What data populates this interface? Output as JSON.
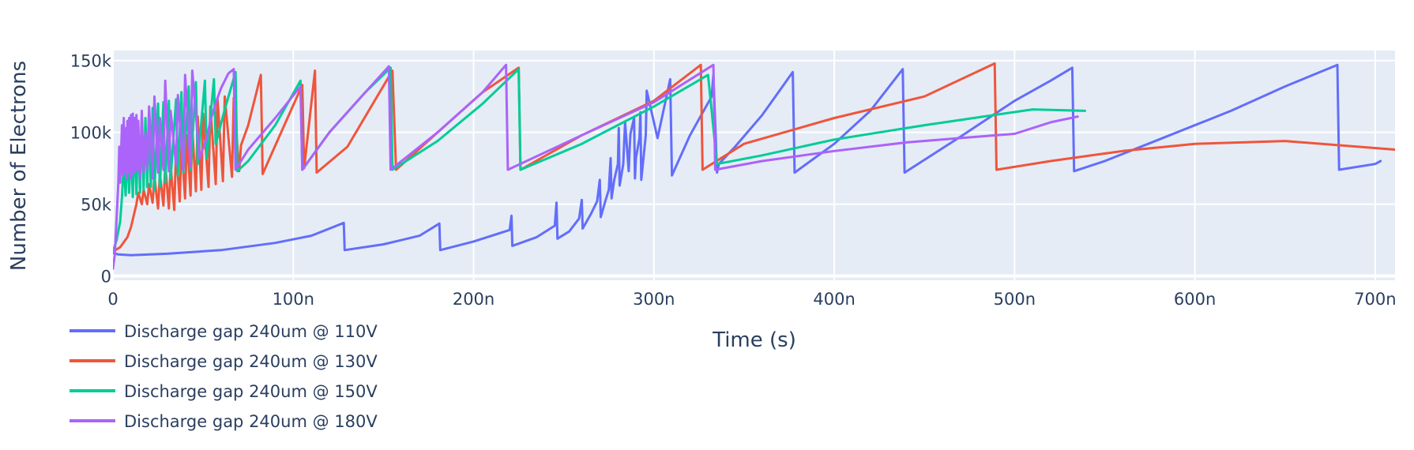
{
  "chart_data": {
    "type": "line",
    "title": "",
    "xlabel": "Time (s)",
    "ylabel": "Number of Electrons",
    "xlim": [
      0,
      711
    ],
    "ylim": [
      -3000,
      157000
    ],
    "x_unit_note": "x values in nanoseconds (axis ticks printed as n)",
    "x_ticks": [
      0,
      100,
      200,
      300,
      400,
      500,
      600,
      700
    ],
    "x_tick_labels": [
      "0",
      "100n",
      "200n",
      "300n",
      "400n",
      "500n",
      "600n",
      "700n"
    ],
    "y_ticks": [
      0,
      50000,
      100000,
      150000
    ],
    "y_tick_labels": [
      "0",
      "50k",
      "100k",
      "150k"
    ],
    "grid": true,
    "legend_position": "bottom-left",
    "plot_background": "#e5ecf6",
    "series": [
      {
        "name": "Discharge gap 240um @ 110V",
        "color": "#636efa",
        "x": [
          0,
          3,
          10,
          30,
          60,
          90,
          110,
          128,
          128.5,
          150,
          170,
          181,
          181.5,
          200,
          220,
          221,
          221.5,
          235,
          245,
          246,
          246.5,
          253,
          258.5,
          260,
          260.5,
          265,
          268.5,
          270,
          270.5,
          273,
          275,
          276,
          276.5,
          278,
          280,
          280.5,
          281,
          283,
          283.5,
          284,
          286,
          286.5,
          287,
          289,
          289.5,
          290,
          292,
          292.5,
          293,
          295.5,
          296,
          302,
          309,
          310,
          320,
          332,
          333,
          335,
          336,
          345,
          360,
          377,
          378,
          400,
          420,
          438,
          439,
          470,
          500,
          520,
          532,
          533,
          550,
          580,
          620,
          650,
          679,
          680,
          700,
          703
        ],
        "y": [
          16000,
          15000,
          14500,
          15500,
          18000,
          23000,
          28000,
          37000,
          18000,
          22000,
          28000,
          36500,
          18000,
          24000,
          32000,
          42000,
          21000,
          27000,
          35000,
          51000,
          26000,
          31000,
          40000,
          53000,
          33000,
          43000,
          52000,
          67000,
          41000,
          52000,
          60000,
          82000,
          54000,
          67000,
          78000,
          103000,
          63000,
          78000,
          92000,
          107000,
          73000,
          88000,
          99000,
          110000,
          68000,
          82000,
          96000,
          114000,
          67000,
          98000,
          129000,
          96000,
          137000,
          70000,
          98000,
          125000,
          140000,
          72000,
          78000,
          90000,
          112000,
          142000,
          72000,
          92000,
          115000,
          144000,
          72000,
          97000,
          122000,
          136000,
          145000,
          73000,
          80000,
          95000,
          115000,
          132000,
          147000,
          74000,
          78000,
          80000
        ]
      },
      {
        "name": "Discharge gap 240um @ 130V",
        "color": "#ef553b",
        "x": [
          0,
          4,
          8,
          10,
          13,
          14,
          16,
          17,
          19,
          20,
          22,
          23,
          25,
          26,
          28,
          29,
          31,
          32,
          34,
          35,
          37,
          38,
          40,
          41,
          43,
          44,
          46,
          47,
          49,
          50,
          53,
          54,
          57,
          58,
          61,
          62,
          66,
          67,
          70,
          71,
          75,
          82,
          83,
          95,
          105,
          106,
          112,
          113,
          130,
          155,
          157,
          180,
          205,
          225,
          226,
          260,
          300,
          326,
          327,
          350,
          400,
          450,
          489,
          490,
          520,
          560,
          600,
          650,
          711
        ],
        "y": [
          17000,
          20000,
          27000,
          34000,
          50000,
          58000,
          50000,
          60000,
          50000,
          64000,
          51000,
          69000,
          47000,
          71000,
          49000,
          77000,
          47000,
          77000,
          46000,
          89000,
          52000,
          91000,
          54000,
          98000,
          56000,
          103000,
          59000,
          111000,
          60000,
          113000,
          62000,
          118000,
          64000,
          123000,
          66000,
          125000,
          69000,
          124000,
          73000,
          91000,
          105000,
          140000,
          71000,
          105000,
          133000,
          75000,
          143000,
          72000,
          90000,
          143000,
          74000,
          100000,
          128000,
          145000,
          74000,
          98000,
          122000,
          147000,
          74000,
          92000,
          110000,
          125000,
          148000,
          74000,
          80000,
          87000,
          92000,
          94000,
          88000
        ]
      },
      {
        "name": "Discharge gap 240um @ 150V",
        "color": "#00cc96",
        "x": [
          0,
          2,
          4,
          5,
          6,
          7,
          8,
          9,
          10,
          11,
          12,
          13,
          14,
          15,
          16,
          17,
          18,
          19,
          20,
          21,
          22,
          23,
          25,
          26,
          28,
          29,
          31,
          32,
          35,
          36,
          38,
          39,
          42,
          43,
          46,
          47,
          51,
          52,
          56,
          57,
          62,
          68,
          69,
          75,
          90,
          104,
          105,
          120,
          140,
          154,
          155,
          180,
          205,
          225,
          226,
          260,
          300,
          330,
          335,
          360,
          400,
          450,
          510,
          539
        ],
        "y": [
          17000,
          25000,
          38000,
          55000,
          80000,
          56000,
          88000,
          58000,
          93000,
          55000,
          98000,
          57000,
          104000,
          58000,
          108000,
          60000,
          110000,
          62000,
          113000,
          62000,
          117000,
          60000,
          120000,
          62000,
          121000,
          65000,
          122000,
          68000,
          123000,
          70000,
          128000,
          72000,
          132000,
          74000,
          135000,
          78000,
          136000,
          82000,
          137000,
          92000,
          116000,
          142000,
          73000,
          80000,
          105000,
          136000,
          74000,
          100000,
          128000,
          145000,
          74000,
          94000,
          120000,
          144000,
          74000,
          92000,
          118000,
          140000,
          78000,
          84000,
          95000,
          105000,
          116000,
          115000
        ]
      },
      {
        "name": "Discharge gap 240um @ 180V",
        "color": "#ab63fa",
        "x": [
          0,
          1,
          2,
          3,
          3.5,
          4,
          5,
          5.5,
          6,
          6.5,
          7,
          7.5,
          8,
          8.5,
          9,
          9.5,
          10,
          10.5,
          11,
          11.5,
          12,
          12.5,
          13,
          13.5,
          14,
          15,
          16,
          17,
          18,
          19,
          20,
          22,
          23,
          25,
          26,
          28,
          29,
          31,
          32,
          35,
          36,
          39,
          40,
          43,
          44,
          48,
          52,
          54,
          58,
          60,
          64,
          67,
          68,
          75,
          90,
          104,
          105,
          120,
          140,
          153,
          154,
          180,
          205,
          218,
          219,
          260,
          300,
          333,
          334,
          360,
          400,
          440,
          470,
          500,
          520,
          535
        ],
        "y": [
          5000,
          15000,
          40000,
          65000,
          90000,
          65000,
          105000,
          70000,
          110000,
          72000,
          103000,
          68000,
          108000,
          72000,
          110000,
          68000,
          112000,
          70000,
          113000,
          72000,
          110000,
          73000,
          112000,
          74000,
          108000,
          68000,
          115000,
          72000,
          100000,
          75000,
          118000,
          68000,
          125000,
          72000,
          110000,
          74000,
          136000,
          73000,
          115000,
          77000,
          126000,
          74000,
          140000,
          76000,
          143000,
          82000,
          96000,
          108000,
          124000,
          131000,
          141000,
          144000,
          74000,
          88000,
          110000,
          132000,
          74000,
          100000,
          128000,
          146000,
          74000,
          100000,
          128000,
          147000,
          74000,
          98000,
          121000,
          147000,
          74000,
          80000,
          87000,
          93000,
          96000,
          99000,
          107000,
          111000
        ]
      }
    ]
  }
}
